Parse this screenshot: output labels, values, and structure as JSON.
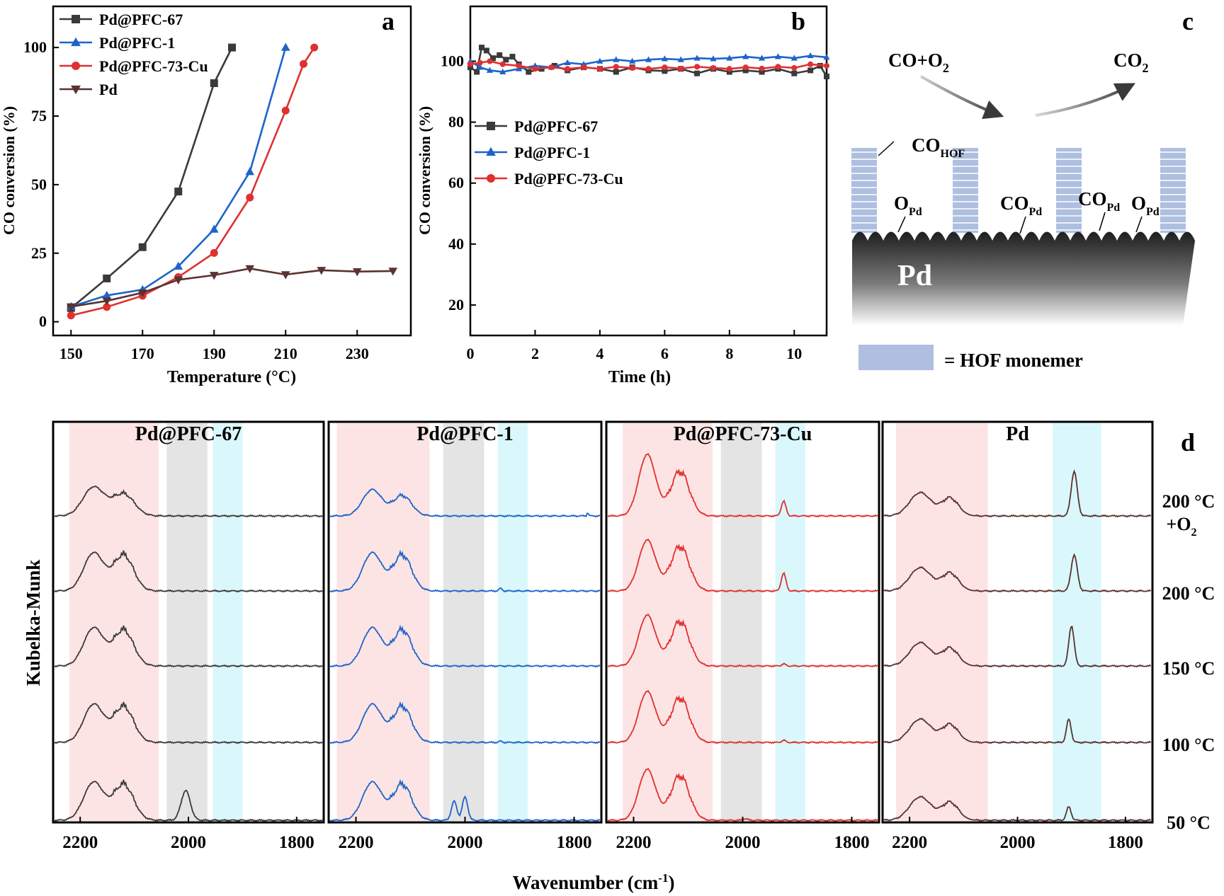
{
  "colors": {
    "pd_pfc_67": "#3a3a3a",
    "pd_pfc_1": "#1e64c8",
    "pd_pfc_73_cu": "#e03030",
    "pd": "#5a3230",
    "band_pink": "#fde4e4",
    "band_gray": "#e4e4e4",
    "band_cyan": "#daf8fb",
    "hof": "#aebfdf"
  },
  "chart_data": [
    {
      "id": "a",
      "type": "line",
      "panel_label": "a",
      "xlabel": "Temperature (°C)",
      "ylabel": "CO conversion (%)",
      "xlim": [
        145,
        245
      ],
      "ylim": [
        -5,
        115
      ],
      "xticks": [
        150,
        170,
        190,
        210,
        230
      ],
      "yticks": [
        0,
        25,
        50,
        75,
        100
      ],
      "legend_position": "top-left",
      "series": [
        {
          "name": "Pd@PFC-67",
          "color_key": "pd_pfc_67",
          "marker": "square",
          "x": [
            150,
            160,
            170,
            180,
            190,
            195
          ],
          "y": [
            5,
            15.8,
            27.2,
            47.5,
            87,
            100
          ]
        },
        {
          "name": "Pd@PFC-1",
          "color_key": "pd_pfc_1",
          "marker": "triangle-up",
          "x": [
            150,
            160,
            170,
            180,
            190,
            200,
            210
          ],
          "y": [
            5.5,
            9.6,
            11.7,
            20.2,
            33.7,
            54.7,
            100
          ]
        },
        {
          "name": "Pd@PFC-73-Cu",
          "color_key": "pd_pfc_73_cu",
          "marker": "circle",
          "x": [
            150,
            160,
            170,
            180,
            190,
            200,
            210,
            215,
            218
          ],
          "y": [
            2.3,
            5.4,
            9.5,
            16.3,
            25.1,
            45.3,
            77,
            94,
            100
          ]
        },
        {
          "name": "Pd",
          "color_key": "pd",
          "marker": "triangle-down",
          "x": [
            150,
            160,
            170,
            180,
            190,
            200,
            210,
            220,
            230,
            240
          ],
          "y": [
            5.5,
            7.6,
            10.6,
            15.3,
            17,
            19.4,
            17.2,
            18.8,
            18.3,
            18.5
          ]
        }
      ]
    },
    {
      "id": "b",
      "type": "line",
      "panel_label": "b",
      "xlabel": "Time (h)",
      "ylabel": "CO conversion (%)",
      "xlim": [
        0,
        11
      ],
      "ylim": [
        10,
        118
      ],
      "xticks": [
        0,
        2,
        4,
        6,
        8,
        10
      ],
      "yticks": [
        20,
        40,
        60,
        80,
        100
      ],
      "legend_position": "center-left",
      "series": [
        {
          "name": "Pd@PFC-67",
          "color_key": "pd_pfc_67",
          "marker": "square",
          "x": [
            0,
            0.2,
            0.35,
            0.5,
            0.7,
            0.9,
            1.1,
            1.3,
            1.5,
            1.8,
            2.2,
            2.6,
            3.0,
            3.5,
            4.0,
            4.5,
            5.0,
            5.5,
            6.0,
            6.5,
            7.0,
            7.5,
            8.0,
            8.5,
            9.0,
            9.5,
            10.0,
            10.5,
            10.8,
            11.0
          ],
          "y": [
            98,
            96.5,
            104.5,
            103.5,
            101,
            102,
            100.5,
            101.5,
            99,
            96.5,
            97.5,
            98.5,
            97,
            98,
            97.5,
            96.5,
            98,
            97,
            96.8,
            97.5,
            96,
            97.5,
            96.5,
            97,
            96.5,
            97.5,
            96,
            97,
            98.5,
            95
          ]
        },
        {
          "name": "Pd@PFC-1",
          "color_key": "pd_pfc_1",
          "marker": "triangle-up",
          "x": [
            0,
            0.3,
            0.6,
            1.0,
            1.5,
            2.0,
            2.5,
            3.0,
            3.5,
            4.0,
            4.5,
            5.0,
            5.5,
            6.0,
            6.5,
            7.0,
            7.5,
            8.0,
            8.5,
            9.0,
            9.5,
            10.0,
            10.5,
            11.0
          ],
          "y": [
            100,
            98,
            97,
            96.5,
            97.5,
            98.5,
            98,
            99.5,
            99,
            100,
            100.5,
            100,
            100.5,
            100.8,
            100.5,
            101,
            100.8,
            101,
            101.5,
            101,
            101.5,
            101,
            101.8,
            101.3
          ]
        },
        {
          "name": "Pd@PFC-73-Cu",
          "color_key": "pd_pfc_73_cu",
          "marker": "circle",
          "x": [
            0,
            0.3,
            0.6,
            1.0,
            1.5,
            2.0,
            2.5,
            3.0,
            3.5,
            4.0,
            4.5,
            5.0,
            5.5,
            6.0,
            6.5,
            7.0,
            7.5,
            8.0,
            8.5,
            9.0,
            9.5,
            10.0,
            10.5,
            11.0
          ],
          "y": [
            99,
            99.5,
            100,
            99,
            98.5,
            97.5,
            98,
            97.5,
            98,
            97.5,
            98.2,
            97.8,
            97.5,
            98,
            97.6,
            98.2,
            97.8,
            97.5,
            98,
            97.6,
            98.2,
            97.8,
            99,
            98.5
          ]
        }
      ]
    },
    {
      "id": "d",
      "type": "line",
      "panel_label": "d",
      "xlabel": "Wavenumber (cm⁻¹)",
      "ylabel": "Kubelka-Munk",
      "xlim": [
        2250,
        1750
      ],
      "xticks": [
        2200,
        2000,
        1800
      ],
      "conditions": [
        "200 °C +O₂",
        "200 °C",
        "150 °C",
        "100 °C",
        "50 °C"
      ],
      "panels": [
        {
          "name": "Pd@PFC-67",
          "color_key": "pd_pfc_67",
          "bands": [
            [
              2220,
              2055,
              "band_pink"
            ],
            [
              2040,
              1965,
              "band_gray"
            ],
            [
              1955,
              1900,
              "band_cyan"
            ]
          ],
          "peaks_by_condition": [
            [
              [
                2175,
                0.68,
                28
              ],
              [
                2120,
                0.52,
                28
              ]
            ],
            [
              [
                2175,
                0.9,
                26
              ],
              [
                2120,
                0.85,
                26
              ]
            ],
            [
              [
                2175,
                0.9,
                26
              ],
              [
                2120,
                0.85,
                26
              ]
            ],
            [
              [
                2175,
                0.9,
                26
              ],
              [
                2120,
                0.85,
                26
              ]
            ],
            [
              [
                2175,
                0.9,
                26
              ],
              [
                2120,
                0.85,
                26
              ],
              [
                2005,
                0.7,
                12
              ]
            ]
          ]
        },
        {
          "name": "Pd@PFC-1",
          "color_key": "pd_pfc_1",
          "bands": [
            [
              2235,
              2065,
              "band_pink"
            ],
            [
              2040,
              1965,
              "band_gray"
            ],
            [
              1940,
              1885,
              "band_cyan"
            ]
          ],
          "peaks_by_condition": [
            [
              [
                2170,
                0.62,
                25
              ],
              [
                2115,
                0.48,
                24
              ],
              [
                1775,
                0.08,
                2
              ]
            ],
            [
              [
                2170,
                0.9,
                25
              ],
              [
                2115,
                0.85,
                24
              ],
              [
                1935,
                0.06,
                4
              ]
            ],
            [
              [
                2170,
                0.9,
                25
              ],
              [
                2115,
                0.85,
                24
              ]
            ],
            [
              [
                2170,
                0.9,
                25
              ],
              [
                2115,
                0.85,
                24
              ],
              [
                1935,
                0.03,
                4
              ]
            ],
            [
              [
                2170,
                0.9,
                25
              ],
              [
                2115,
                0.85,
                24
              ],
              [
                2020,
                0.45,
                7
              ],
              [
                2000,
                0.55,
                7
              ]
            ]
          ]
        },
        {
          "name": "Pd@PFC-73-Cu",
          "color_key": "pd_pfc_73_cu",
          "bands": [
            [
              2220,
              2055,
              "band_pink"
            ],
            [
              2040,
              1965,
              "band_gray"
            ],
            [
              1940,
              1885,
              "band_cyan"
            ]
          ],
          "peaks_by_condition": [
            [
              [
                2175,
                1.45,
                22
              ],
              [
                2115,
                1.05,
                24
              ],
              [
                1925,
                0.35,
                6
              ]
            ],
            [
              [
                2175,
                1.2,
                22
              ],
              [
                2115,
                1.05,
                24
              ],
              [
                1925,
                0.42,
                6
              ]
            ],
            [
              [
                2175,
                1.2,
                22
              ],
              [
                2115,
                1.05,
                24
              ],
              [
                1925,
                0.05,
                5
              ]
            ],
            [
              [
                2175,
                1.2,
                22
              ],
              [
                2115,
                1.05,
                24
              ],
              [
                1925,
                0.05,
                5
              ]
            ],
            [
              [
                2175,
                1.2,
                22
              ],
              [
                2115,
                1.05,
                24
              ],
              [
                1995,
                0.04,
                5
              ]
            ]
          ]
        },
        {
          "name": "Pd",
          "color_key": "pd",
          "bands": [
            [
              2225,
              2055,
              "band_pink"
            ],
            [
              1935,
              1845,
              "band_cyan"
            ]
          ],
          "peaks_by_condition": [
            [
              [
                2180,
                0.55,
                28
              ],
              [
                2125,
                0.42,
                22
              ],
              [
                1895,
                1.05,
                8
              ]
            ],
            [
              [
                2180,
                0.55,
                28
              ],
              [
                2125,
                0.42,
                22
              ],
              [
                1895,
                0.85,
                8
              ]
            ],
            [
              [
                2180,
                0.55,
                28
              ],
              [
                2125,
                0.42,
                22
              ],
              [
                1900,
                0.95,
                7
              ]
            ],
            [
              [
                2180,
                0.55,
                28
              ],
              [
                2125,
                0.42,
                22
              ],
              [
                1905,
                0.55,
                6
              ]
            ],
            [
              [
                2180,
                0.55,
                28
              ],
              [
                2125,
                0.42,
                22
              ],
              [
                1905,
                0.32,
                6
              ]
            ]
          ]
        }
      ]
    }
  ],
  "scheme": {
    "panel_label": "c",
    "reactants": "CO+O₂",
    "product": "CO₂",
    "surface_label": "Pd",
    "co_hof": {
      "main": "CO",
      "sub": "HOF"
    },
    "co_pd": {
      "main": "CO",
      "sub": "Pd"
    },
    "o_pd": {
      "main": "O",
      "sub": "Pd"
    },
    "legend_text": "= HOF monemer"
  }
}
